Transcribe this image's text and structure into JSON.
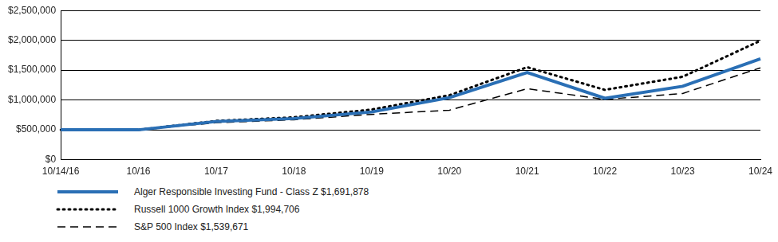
{
  "chart_data": {
    "type": "line",
    "categories": [
      "10/14/16",
      "10/16",
      "10/17",
      "10/18",
      "10/19",
      "10/20",
      "10/21",
      "10/22",
      "10/23",
      "10/24"
    ],
    "series": [
      {
        "name": "Alger Responsible Investing Fund - Class Z $1,691,878",
        "color": "#2a6fb5",
        "line_style": "solid",
        "values": [
          500000,
          500000,
          640000,
          690000,
          800000,
          1040000,
          1460000,
          1030000,
          1230000,
          1691878
        ]
      },
      {
        "name": "Russell 1000 Growth Index $1,994,706",
        "color": "#000000",
        "line_style": "dotted",
        "values": [
          500000,
          500000,
          650000,
          710000,
          840000,
          1080000,
          1550000,
          1170000,
          1390000,
          1994706
        ]
      },
      {
        "name": "S&P 500 Index $1,539,671",
        "color": "#000000",
        "line_style": "dashed",
        "values": [
          500000,
          500000,
          620000,
          670000,
          760000,
          830000,
          1190000,
          1010000,
          1110000,
          1539671
        ]
      }
    ],
    "ylim": [
      0,
      2500000
    ],
    "yticks": [
      {
        "value": 0,
        "label": "$0"
      },
      {
        "value": 500000,
        "label": "$500,000"
      },
      {
        "value": 1000000,
        "label": "$1,000,000"
      },
      {
        "value": 1500000,
        "label": "$1,500,000"
      },
      {
        "value": 2000000,
        "label": "$2,000,000"
      },
      {
        "value": 2500000,
        "label": "$2,500,000"
      }
    ],
    "grid": true,
    "legend": "bottom"
  }
}
